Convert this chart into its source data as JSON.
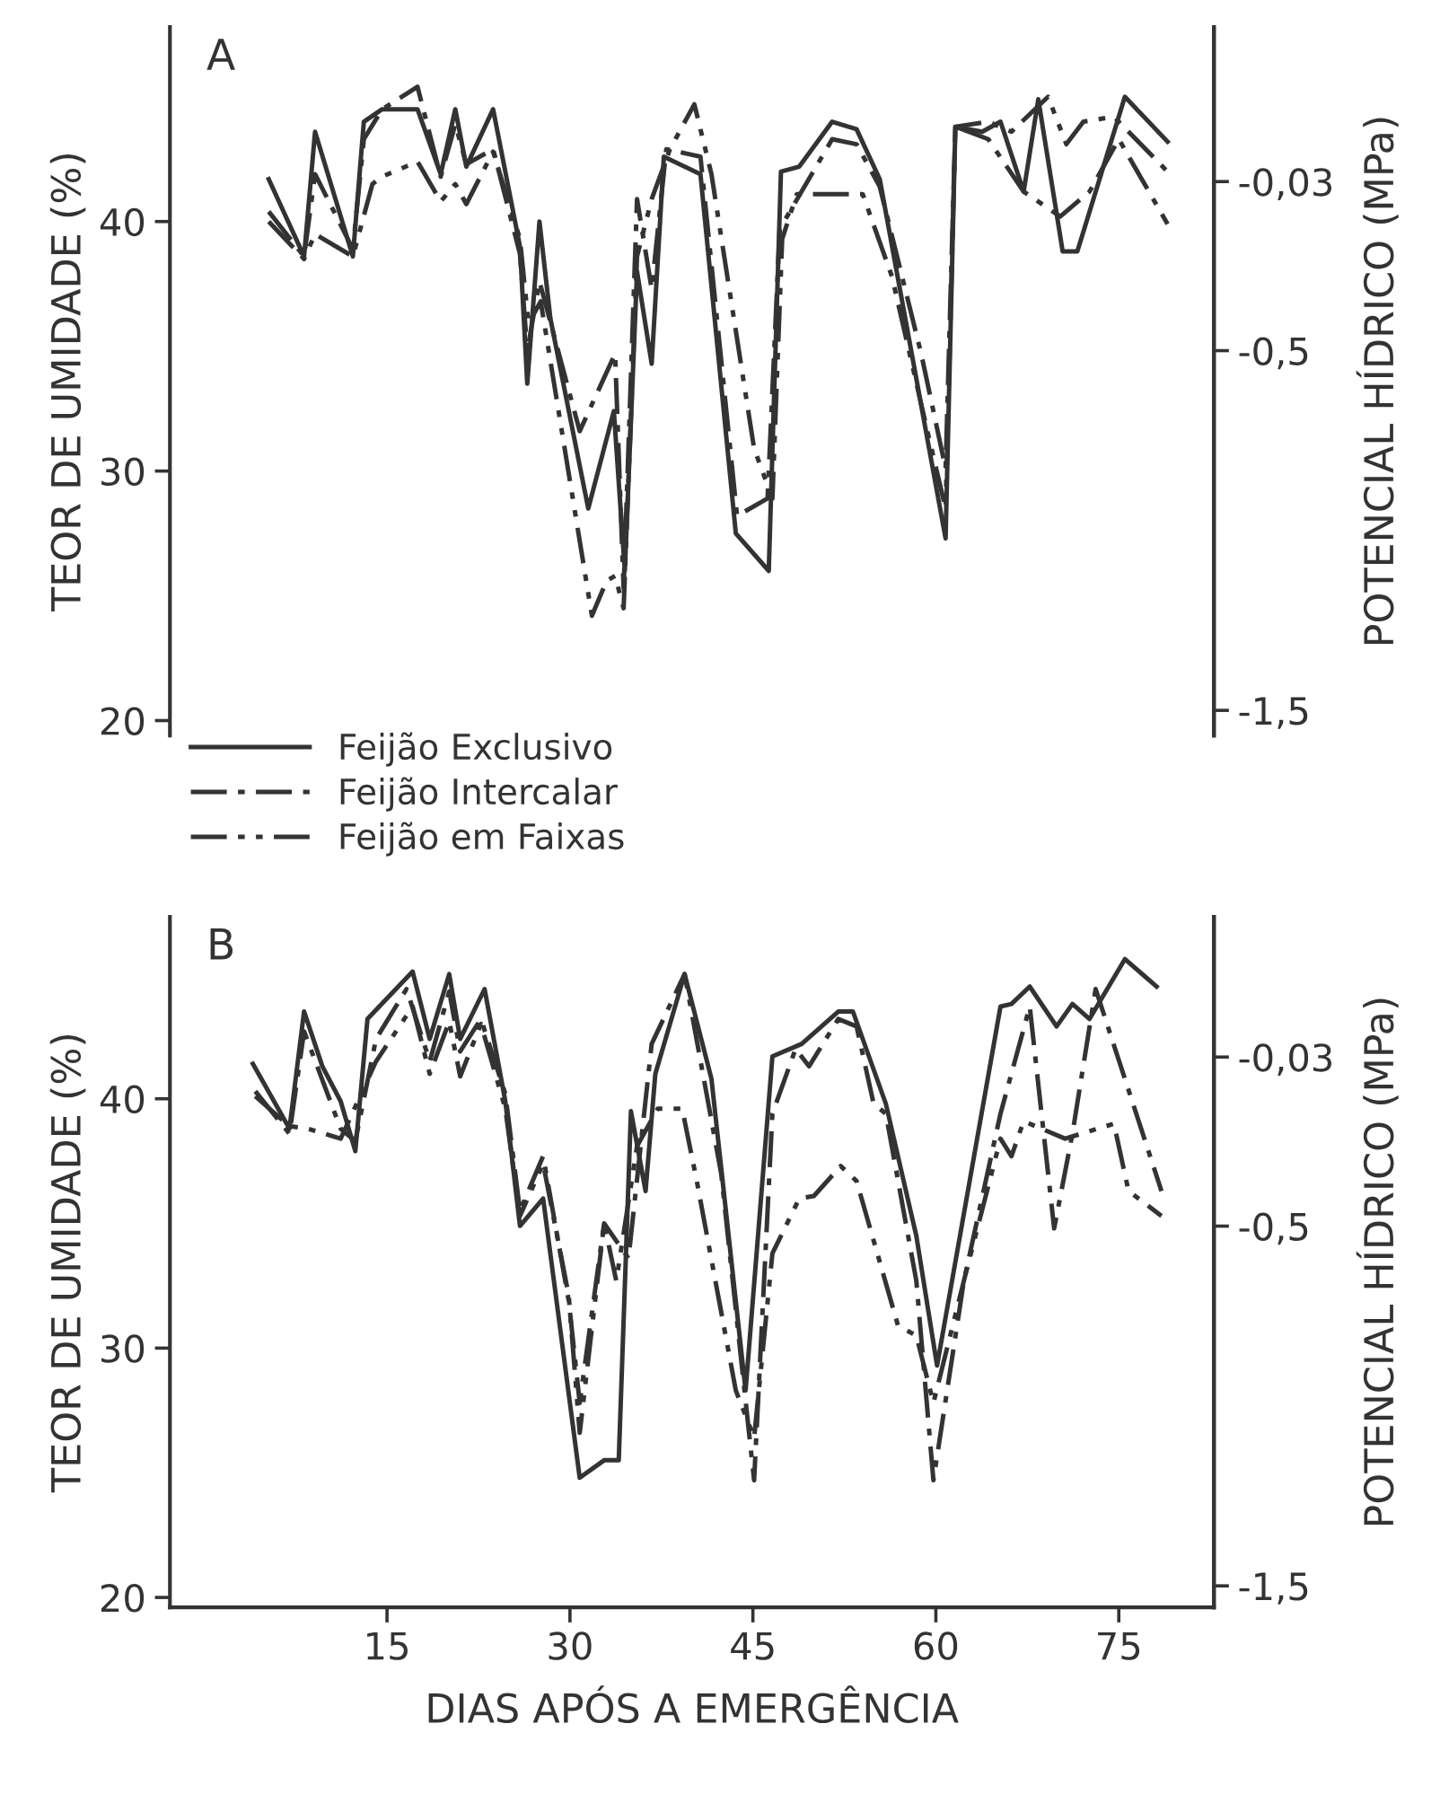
{
  "chart_data": [
    {
      "type": "line",
      "annotations": [
        "A"
      ],
      "ylabel": "TEOR DE UMIDADE (%)",
      "y2label": "POTENCIAL HÍDRICO (MPa)",
      "xlim": [
        -2.8,
        82.8
      ],
      "ylim": [
        19.4,
        47.8
      ],
      "yticks": [
        20,
        30,
        40
      ],
      "y2lim": [
        -1.57,
        0.4
      ],
      "y2ticks": [
        {
          "value": -0.03,
          "label": "-0,03"
        },
        {
          "value": -0.5,
          "label": "-0,5"
        },
        {
          "value": -1.5,
          "label": "-1,5"
        }
      ],
      "tick_labels": "y",
      "legend": "bottom left",
      "grid": false,
      "series": [
        {
          "name": "Feijão Exclusivo",
          "color": "#333333",
          "line_style": "solid",
          "x": [
            5.3,
            8.2,
            9.1,
            12.2,
            13.1,
            14.6,
            17.5,
            19.4,
            20.6,
            21.5,
            23.7,
            25.9,
            26.5,
            27.5,
            28.4,
            31.5,
            33.6,
            34.5,
            35.5,
            36.7,
            37.7,
            40.7,
            43.6,
            46.3,
            47.3,
            48.8,
            51.5,
            53.5,
            55.4,
            60.8,
            61.6,
            63.8,
            65.3,
            67.2,
            68.4,
            70.4,
            71.6,
            75.5,
            79.0
          ],
          "values": [
            41.7,
            38.6,
            43.6,
            38.6,
            44.0,
            44.5,
            44.5,
            41.9,
            44.5,
            42.2,
            44.5,
            39.0,
            33.5,
            40.0,
            36.1,
            28.5,
            32.4,
            26.0,
            38.0,
            34.3,
            42.6,
            41.9,
            27.5,
            26.0,
            42.0,
            42.2,
            44.0,
            43.7,
            41.7,
            27.3,
            43.8,
            43.6,
            44.0,
            41.2,
            44.9,
            38.8,
            38.8,
            45.0,
            43.2
          ]
        },
        {
          "name": "Feijão Intercalar",
          "color": "#333333",
          "line_style": "dashdot",
          "x": [
            5.3,
            8.2,
            9.1,
            12.2,
            13.1,
            14.6,
            17.5,
            19.4,
            20.6,
            21.5,
            23.7,
            25.9,
            26.5,
            27.5,
            30.8,
            33.7,
            34.4,
            35.5,
            36.7,
            37.9,
            40.7,
            43.7,
            46.2,
            47.2,
            51.5,
            53.5,
            55.4,
            58.8,
            60.8,
            61.6,
            64.3,
            67.2,
            70.2,
            72.6,
            75.0,
            79.0
          ],
          "values": [
            40.4,
            38.6,
            41.9,
            38.9,
            43.3,
            44.5,
            45.4,
            41.8,
            43.9,
            42.3,
            42.9,
            38.7,
            34.8,
            37.6,
            31.6,
            34.7,
            25.3,
            40.9,
            37.3,
            42.9,
            42.6,
            28.2,
            28.9,
            39.7,
            43.3,
            43.1,
            41.4,
            34.7,
            30.1,
            43.8,
            43.3,
            41.2,
            40.2,
            41.2,
            43.3,
            39.9
          ]
        },
        {
          "name": "Feijão em Faixas",
          "color": "#333333",
          "line_style": "dashdotdot",
          "x": [
            5.3,
            8.2,
            9.1,
            12.2,
            13.8,
            14.6,
            17.5,
            19.4,
            20.6,
            21.5,
            23.7,
            25.9,
            26.6,
            27.6,
            31.8,
            33.0,
            33.7,
            34.4,
            35.5,
            36.7,
            38.2,
            40.2,
            41.6,
            45.1,
            46.6,
            47.4,
            48.6,
            54.0,
            56.4,
            59.4,
            60.8,
            61.6,
            64.3,
            66.2,
            69.2,
            70.7,
            72.1,
            74.6,
            79.0
          ],
          "values": [
            40.0,
            38.5,
            39.5,
            38.6,
            41.5,
            41.8,
            42.4,
            40.8,
            41.5,
            40.7,
            42.8,
            39.3,
            35.9,
            36.8,
            24.2,
            25.6,
            25.8,
            24.5,
            38.6,
            40.9,
            42.9,
            44.7,
            41.9,
            30.9,
            28.9,
            39.3,
            41.1,
            41.1,
            37.8,
            31.4,
            28.5,
            43.8,
            44.0,
            43.6,
            45.0,
            43.1,
            44.0,
            44.2,
            42.0
          ]
        }
      ]
    },
    {
      "type": "line",
      "annotations": [
        "B"
      ],
      "xlabel": "DIAS APÓS A EMERGÊNCIA",
      "ylabel": "TEOR DE UMIDADE (%)",
      "y2label": "POTENCIAL HÍDRICO (MPa)",
      "xlim": [
        -2.8,
        82.8
      ],
      "xticks": [
        15,
        30,
        45,
        60,
        75
      ],
      "ylim": [
        19.6,
        47.3
      ],
      "yticks": [
        20,
        30,
        40
      ],
      "y2lim": [
        -1.56,
        0.36
      ],
      "y2ticks": [
        {
          "value": -0.03,
          "label": "-0,03"
        },
        {
          "value": -0.5,
          "label": "-0,5"
        },
        {
          "value": -1.5,
          "label": "-1,5"
        }
      ],
      "grid": false,
      "series": [
        {
          "color": "#333333",
          "line_style": "solid",
          "x": [
            4.0,
            7.0,
            8.2,
            9.7,
            11.2,
            12.4,
            13.4,
            17.1,
            18.5,
            20.1,
            21.0,
            23.0,
            24.7,
            25.9,
            27.8,
            30.8,
            32.8,
            34.0,
            35.0,
            36.2,
            37.0,
            39.4,
            41.6,
            44.4,
            46.6,
            49.0,
            52.0,
            53.2,
            55.9,
            58.4,
            60.1,
            65.3,
            66.2,
            67.7,
            69.9,
            71.2,
            72.6,
            75.5,
            78.1
          ],
          "values": [
            41.4,
            38.8,
            43.5,
            41.3,
            39.9,
            37.9,
            43.2,
            45.1,
            42.4,
            45.0,
            42.4,
            44.4,
            39.9,
            34.9,
            36.0,
            24.8,
            25.5,
            25.5,
            39.5,
            36.3,
            41.0,
            45.0,
            40.8,
            28.3,
            41.7,
            42.2,
            43.5,
            43.5,
            39.8,
            34.5,
            29.3,
            43.7,
            43.8,
            44.5,
            42.9,
            43.8,
            43.2,
            45.6,
            44.5
          ]
        },
        {
          "color": "#333333",
          "line_style": "dashdot",
          "x": [
            4.2,
            7.0,
            8.2,
            11.2,
            12.4,
            14.1,
            16.6,
            18.5,
            20.1,
            21.0,
            22.7,
            24.7,
            25.9,
            27.8,
            29.9,
            30.8,
            32.8,
            34.8,
            36.7,
            39.4,
            42.4,
            45.1,
            46.6,
            48.5,
            49.6,
            52.0,
            53.5,
            54.9,
            55.9,
            58.4,
            59.8,
            62.3,
            65.3,
            67.7,
            69.7,
            71.2,
            73.1,
            78.5
          ],
          "values": [
            40.3,
            38.6,
            42.7,
            38.8,
            38.3,
            42.4,
            44.4,
            41.5,
            44.3,
            41.9,
            43.2,
            40.2,
            35.5,
            37.7,
            31.9,
            27.8,
            35.0,
            33.6,
            42.2,
            45.0,
            37.0,
            24.7,
            39.4,
            42.0,
            41.3,
            43.2,
            42.9,
            39.8,
            39.4,
            32.7,
            24.7,
            32.7,
            39.4,
            43.7,
            34.8,
            38.6,
            44.4,
            36.3
          ]
        },
        {
          "color": "#333333",
          "line_style": "dashdotdot",
          "x": [
            4.2,
            7.0,
            8.5,
            11.2,
            14.1,
            17.1,
            18.5,
            20.1,
            21.0,
            22.7,
            24.7,
            25.9,
            27.8,
            29.9,
            30.8,
            32.8,
            33.8,
            35.5,
            37.2,
            39.2,
            40.4,
            43.6,
            45.1,
            46.6,
            48.8,
            50.0,
            52.2,
            53.5,
            56.9,
            58.4,
            59.8,
            62.3,
            65.3,
            66.2,
            67.2,
            70.6,
            74.6,
            75.8,
            78.5
          ],
          "values": [
            40.1,
            38.9,
            38.8,
            38.4,
            41.5,
            43.7,
            41.0,
            43.1,
            40.9,
            43.0,
            39.6,
            35.3,
            37.4,
            32.1,
            26.6,
            35.0,
            32.7,
            38.1,
            39.6,
            39.6,
            36.7,
            28.3,
            26.4,
            33.8,
            36.0,
            36.1,
            37.3,
            36.7,
            30.9,
            30.5,
            27.8,
            32.7,
            38.4,
            37.7,
            39.1,
            38.4,
            39.0,
            36.3,
            35.3
          ]
        }
      ]
    }
  ]
}
